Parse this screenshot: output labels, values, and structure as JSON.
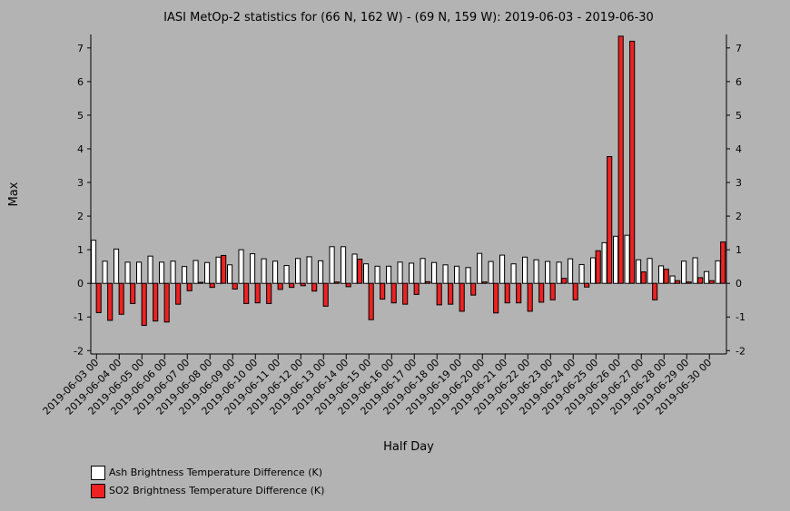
{
  "chart_data": {
    "type": "bar",
    "title": "IASI MetOp-2 statistics for (66 N, 162 W) - (69 N, 159 W): 2019-06-03 - 2019-06-30",
    "xlabel": "Half Day",
    "ylabel": "Max",
    "ylim": [
      -2.1,
      7.4
    ],
    "yticks": [
      -2,
      -1,
      0,
      1,
      2,
      3,
      4,
      5,
      6,
      7
    ],
    "tick_labels": [
      "2019-06-03 00",
      "2019-06-04 00",
      "2019-06-05 00",
      "2019-06-06 00",
      "2019-06-07 00",
      "2019-06-08 00",
      "2019-06-09 00",
      "2019-06-10 00",
      "2019-06-11 00",
      "2019-06-12 00",
      "2019-06-13 00",
      "2019-06-14 00",
      "2019-06-15 00",
      "2019-06-16 00",
      "2019-06-17 00",
      "2019-06-18 00",
      "2019-06-19 00",
      "2019-06-20 00",
      "2019-06-21 00",
      "2019-06-22 00",
      "2019-06-23 00",
      "2019-06-24 00",
      "2019-06-25 00",
      "2019-06-26 00",
      "2019-06-27 00",
      "2019-06-28 00",
      "2019-06-29 00",
      "2019-06-30 00"
    ],
    "legend_position": "bottom-left",
    "series": [
      {
        "name": "Ash Brightness Temperature Difference (K)",
        "color": "#ffffff",
        "values": [
          1.28,
          0.66,
          1.02,
          0.63,
          0.63,
          0.81,
          0.63,
          0.66,
          0.5,
          0.68,
          0.62,
          0.78,
          0.55,
          1.0,
          0.88,
          0.73,
          0.66,
          0.53,
          0.74,
          0.79,
          0.67,
          1.09,
          1.09,
          0.87,
          0.58,
          0.51,
          0.51,
          0.63,
          0.6,
          0.74,
          0.62,
          0.55,
          0.51,
          0.47,
          0.89,
          0.65,
          0.84,
          0.58,
          0.78,
          0.7,
          0.65,
          0.63,
          0.73,
          0.56,
          0.76,
          1.21,
          1.4,
          1.43,
          0.7,
          0.74,
          0.52,
          0.22,
          0.66,
          0.76,
          0.35,
          0.67
        ]
      },
      {
        "name": "SO2 Brightness Temperature Difference (K)",
        "color": "#ee2222",
        "values": [
          -0.87,
          -1.1,
          -0.92,
          -0.6,
          -1.25,
          -1.12,
          -1.15,
          -0.62,
          -0.22,
          0.03,
          -0.12,
          0.83,
          -0.17,
          -0.6,
          -0.58,
          -0.6,
          -0.18,
          -0.12,
          -0.07,
          -0.23,
          -0.68,
          0.04,
          -0.1,
          0.72,
          -1.08,
          -0.47,
          -0.58,
          -0.62,
          -0.33,
          0.05,
          -0.64,
          -0.62,
          -0.83,
          -0.35,
          0.04,
          -0.88,
          -0.58,
          -0.58,
          -0.83,
          -0.56,
          -0.49,
          0.15,
          -0.49,
          -0.11,
          0.97,
          3.77,
          7.35,
          7.2,
          0.34,
          -0.49,
          0.42,
          0.08,
          0.04,
          0.17,
          0.08,
          1.23
        ]
      }
    ]
  }
}
